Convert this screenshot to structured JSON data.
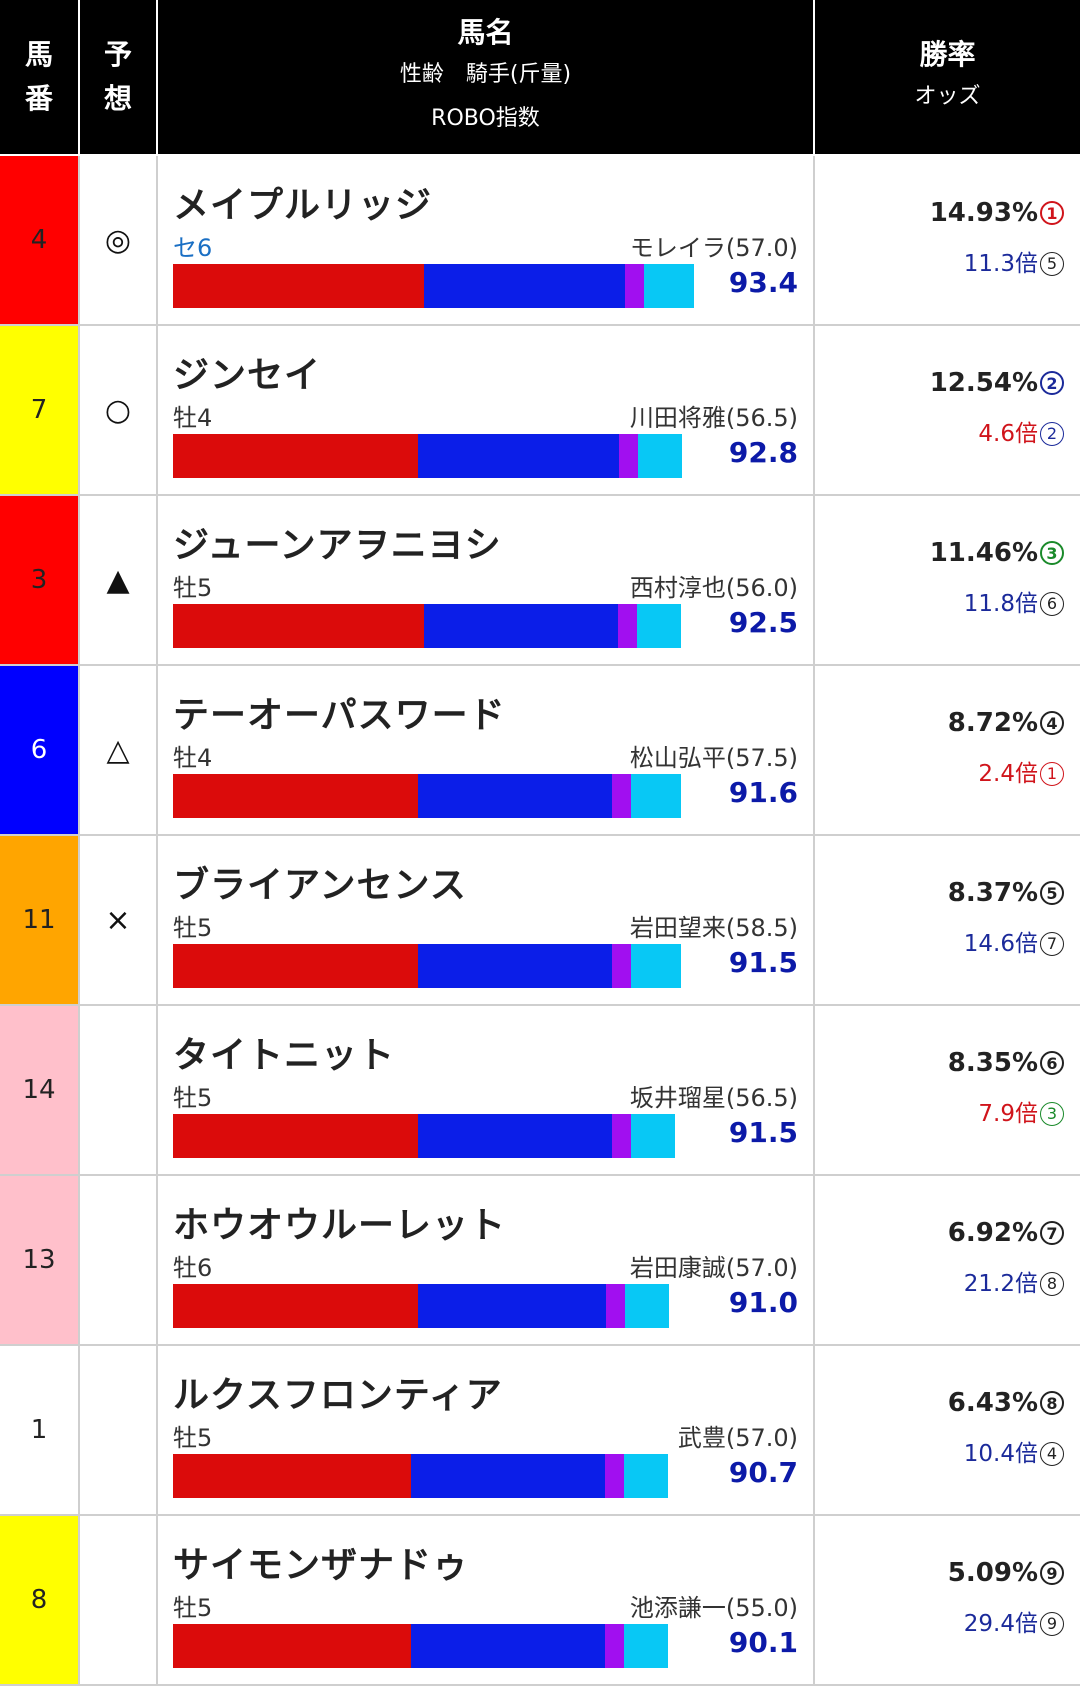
{
  "header": {
    "num_label": "馬\n番",
    "pred_label": "予\n想",
    "name_title": "馬名",
    "name_sub1": "性齢　騎手(斤量)",
    "name_sub2": "ROBO指数",
    "odds_title": "勝率",
    "odds_sub": "オッズ"
  },
  "colors": {
    "frame_colors": [
      "#ff0000",
      "#ffff00",
      "#ff0000",
      "#0000ff",
      "#ffa500",
      "#ffc0cb",
      "#ffc0cb",
      "#ffffff",
      "#ffff00"
    ],
    "robo_index": "#0c1aa8",
    "odds_blue": "#1b2a9a",
    "odds_red": "#d0141b"
  },
  "horses": [
    {
      "num": "4",
      "frame_color": "#ff0000",
      "num_color": "#222",
      "pred": "◎",
      "name": "メイプルリッジ",
      "sex_age": "セ6",
      "sex_age_blue": true,
      "jockey": "モレイラ(57.0)",
      "robo": "93.4",
      "bar": [
        0.4,
        0.32,
        0.03,
        0.08
      ],
      "rate": "14.93%",
      "rate_rank": "1",
      "rate_rank_color": "#d0141b",
      "odds": "11.3倍",
      "odds_color": "#1b2a9a",
      "odds_rank": "5",
      "odds_rank_color": "#222"
    },
    {
      "num": "7",
      "frame_color": "#ffff00",
      "num_color": "#222",
      "pred": "○",
      "name": "ジンセイ",
      "sex_age": "牡4",
      "sex_age_blue": false,
      "jockey": "川田将雅(56.5)",
      "robo": "92.8",
      "bar": [
        0.39,
        0.32,
        0.03,
        0.07
      ],
      "rate": "12.54%",
      "rate_rank": "2",
      "rate_rank_color": "#1b2a9a",
      "odds": "4.6倍",
      "odds_color": "#d0141b",
      "odds_rank": "2",
      "odds_rank_color": "#1b2a9a"
    },
    {
      "num": "3",
      "frame_color": "#ff0000",
      "num_color": "#222",
      "pred": "▲",
      "name": "ジューンアヲニヨシ",
      "sex_age": "牡5",
      "sex_age_blue": false,
      "jockey": "西村淳也(56.0)",
      "robo": "92.5",
      "bar": [
        0.4,
        0.31,
        0.03,
        0.07
      ],
      "rate": "11.46%",
      "rate_rank": "3",
      "rate_rank_color": "#1a8a2a",
      "odds": "11.8倍",
      "odds_color": "#1b2a9a",
      "odds_rank": "6",
      "odds_rank_color": "#222"
    },
    {
      "num": "6",
      "frame_color": "#0000ff",
      "num_color": "#fff",
      "pred": "△",
      "name": "テーオーパスワード",
      "sex_age": "牡4",
      "sex_age_blue": false,
      "jockey": "松山弘平(57.5)",
      "robo": "91.6",
      "bar": [
        0.39,
        0.31,
        0.03,
        0.08
      ],
      "rate": "8.72%",
      "rate_rank": "4",
      "rate_rank_color": "#222",
      "odds": "2.4倍",
      "odds_color": "#d0141b",
      "odds_rank": "1",
      "odds_rank_color": "#d0141b"
    },
    {
      "num": "11",
      "frame_color": "#ffa500",
      "num_color": "#222",
      "pred": "×",
      "name": "ブライアンセンス",
      "sex_age": "牡5",
      "sex_age_blue": false,
      "jockey": "岩田望来(58.5)",
      "robo": "91.5",
      "bar": [
        0.39,
        0.31,
        0.03,
        0.08
      ],
      "rate": "8.37%",
      "rate_rank": "5",
      "rate_rank_color": "#222",
      "odds": "14.6倍",
      "odds_color": "#1b2a9a",
      "odds_rank": "7",
      "odds_rank_color": "#222"
    },
    {
      "num": "14",
      "frame_color": "#ffc0cb",
      "num_color": "#222",
      "pred": "",
      "name": "タイトニット",
      "sex_age": "牡5",
      "sex_age_blue": false,
      "jockey": "坂井瑠星(56.5)",
      "robo": "91.5",
      "bar": [
        0.39,
        0.31,
        0.03,
        0.07
      ],
      "rate": "8.35%",
      "rate_rank": "6",
      "rate_rank_color": "#222",
      "odds": "7.9倍",
      "odds_color": "#d0141b",
      "odds_rank": "3",
      "odds_rank_color": "#1a8a2a"
    },
    {
      "num": "13",
      "frame_color": "#ffc0cb",
      "num_color": "#222",
      "pred": "",
      "name": "ホウオウルーレット",
      "sex_age": "牡6",
      "sex_age_blue": false,
      "jockey": "岩田康誠(57.0)",
      "robo": "91.0",
      "bar": [
        0.39,
        0.3,
        0.03,
        0.07
      ],
      "rate": "6.92%",
      "rate_rank": "7",
      "rate_rank_color": "#222",
      "odds": "21.2倍",
      "odds_color": "#1b2a9a",
      "odds_rank": "8",
      "odds_rank_color": "#222"
    },
    {
      "num": "1",
      "frame_color": "#ffffff",
      "num_color": "#222",
      "pred": "",
      "name": "ルクスフロンティア",
      "sex_age": "牡5",
      "sex_age_blue": false,
      "jockey": "武豊(57.0)",
      "robo": "90.7",
      "bar": [
        0.38,
        0.31,
        0.03,
        0.07
      ],
      "rate": "6.43%",
      "rate_rank": "8",
      "rate_rank_color": "#222",
      "odds": "10.4倍",
      "odds_color": "#1b2a9a",
      "odds_rank": "4",
      "odds_rank_color": "#222"
    },
    {
      "num": "8",
      "frame_color": "#ffff00",
      "num_color": "#222",
      "pred": "",
      "name": "サイモンザナドゥ",
      "sex_age": "牡5",
      "sex_age_blue": false,
      "jockey": "池添謙一(55.0)",
      "robo": "90.1",
      "bar": [
        0.38,
        0.31,
        0.03,
        0.07
      ],
      "rate": "5.09%",
      "rate_rank": "9",
      "rate_rank_color": "#222",
      "odds": "29.4倍",
      "odds_color": "#1b2a9a",
      "odds_rank": "9",
      "odds_rank_color": "#222"
    }
  ]
}
